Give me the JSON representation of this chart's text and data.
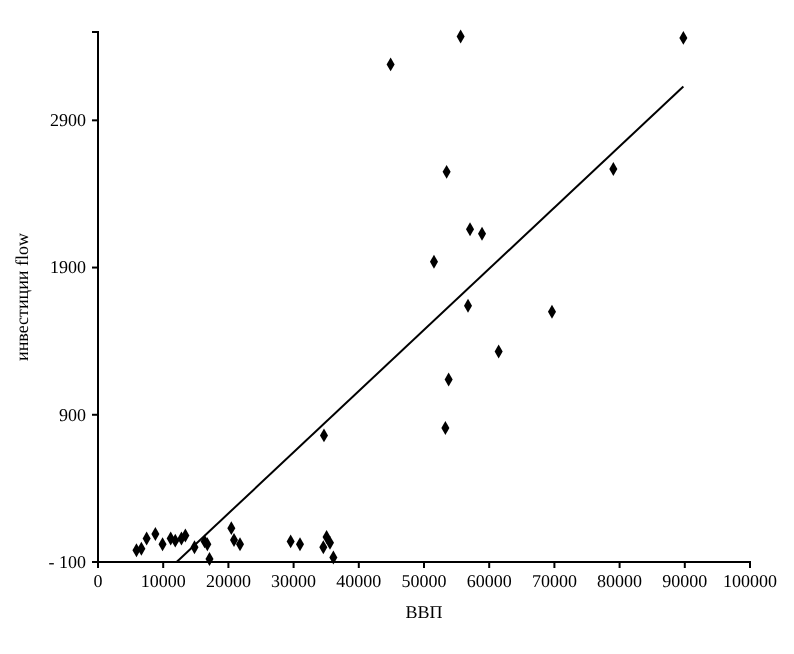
{
  "chart_data": {
    "type": "scatter",
    "xlabel": "ВВП",
    "ylabel": "инвестиции flow",
    "xlim": [
      0,
      100000
    ],
    "ylim": [
      -100,
      3500
    ],
    "xticks": [
      0,
      10000,
      20000,
      30000,
      40000,
      50000,
      60000,
      70000,
      80000,
      90000,
      100000
    ],
    "yticks": [
      {
        "value": -100,
        "label": "- 100"
      },
      900,
      1900,
      2900
    ],
    "marker": "diamond",
    "grid": false,
    "series": [
      {
        "color": "#000000",
        "x": [
          5900,
          6650,
          7460,
          8800,
          9900,
          11150,
          11850,
          12800,
          13400,
          14800,
          16350,
          16770,
          17100,
          20450,
          20860,
          21780,
          29550,
          30980,
          34660,
          34560,
          35060,
          35580,
          36100,
          53280,
          53780,
          56750,
          61450,
          69630,
          44880,
          55620,
          53470,
          57060,
          51530,
          89780,
          79040,
          58900
        ],
        "values": [
          -20,
          -10,
          60,
          90,
          20,
          60,
          45,
          60,
          80,
          0,
          40,
          20,
          -80,
          130,
          50,
          20,
          40,
          20,
          760,
          0,
          70,
          30,
          -70,
          810,
          1140,
          1640,
          1330,
          1600,
          3280,
          3470,
          2550,
          2160,
          1940,
          3460,
          2570,
          2130
        ]
      },
      {
        "type": "line",
        "color": "#000000",
        "marker": "none",
        "x": [
          12060,
          89780
        ],
        "values": [
          -100,
          3130
        ]
      }
    ]
  }
}
